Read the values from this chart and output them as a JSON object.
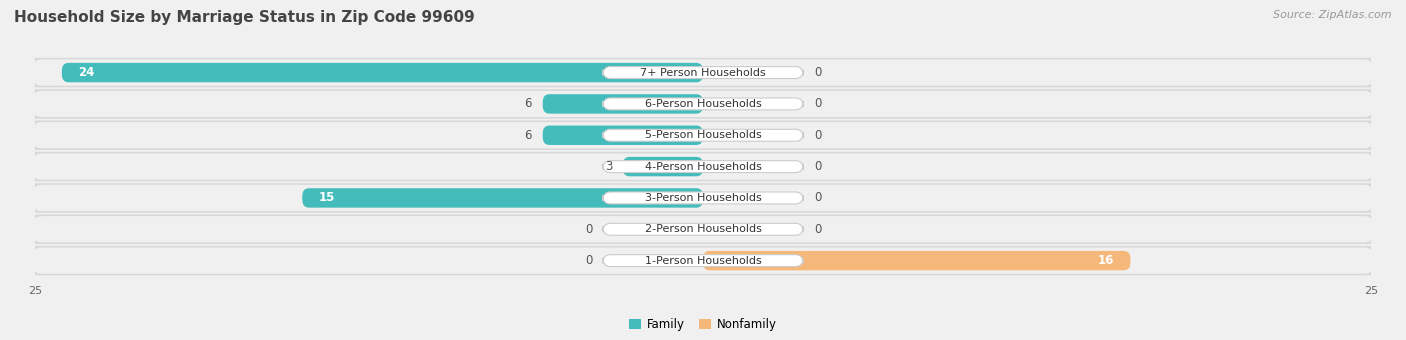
{
  "title": "Household Size by Marriage Status in Zip Code 99609",
  "source": "Source: ZipAtlas.com",
  "categories": [
    "7+ Person Households",
    "6-Person Households",
    "5-Person Households",
    "4-Person Households",
    "3-Person Households",
    "2-Person Households",
    "1-Person Households"
  ],
  "family_values": [
    24,
    6,
    6,
    3,
    15,
    0,
    0
  ],
  "nonfamily_values": [
    0,
    0,
    0,
    0,
    0,
    0,
    16
  ],
  "family_color": "#45BCBC",
  "nonfamily_color": "#F5B87A",
  "x_max": 25,
  "title_fontsize": 11,
  "source_fontsize": 8,
  "bar_label_fontsize": 8.5,
  "cat_label_fontsize": 8,
  "tick_fontsize": 8,
  "legend_fontsize": 8.5,
  "bar_height": 0.62,
  "row_outer_color": "#d8d8d8",
  "row_inner_color": "#f0f0f0",
  "bg_color": "#f0f0f0",
  "pill_color": "#ffffff",
  "pill_edge_color": "#cccccc"
}
